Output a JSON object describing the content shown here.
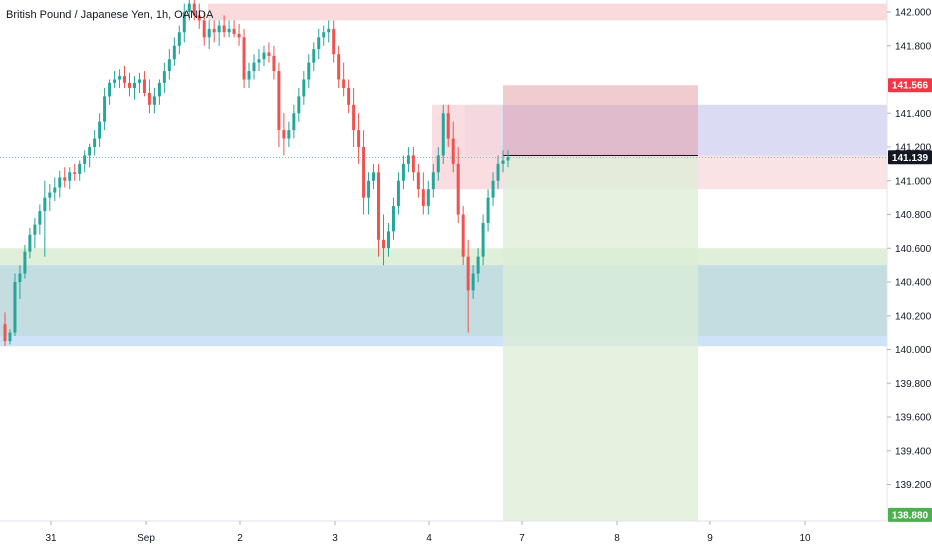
{
  "header": {
    "title": "British Pound / Japanese Yen, 1h, OANDA"
  },
  "price_tags": {
    "stop_loss": {
      "label": "141.566",
      "color": "#f23645"
    },
    "current": {
      "label": "141.139",
      "color": "#131722"
    },
    "target": {
      "label": "138.880",
      "color": "#4caf50"
    }
  },
  "colors": {
    "up": "#26a69a",
    "down": "#ef5350",
    "resistance_zone": "#f8d7da",
    "support_zone_green": "#dcedd5",
    "support_zone_blue": "#bcd9de",
    "supply_zone": "#d7d8f2",
    "risk_zone": "#e3a0aa",
    "reward_zone": "#dcedd5"
  },
  "chart_data": {
    "type": "candlestick",
    "symbol": "British Pound / Japanese Yen",
    "timeframe": "1h",
    "source": "OANDA",
    "ylim": [
      138.9,
      142.05
    ],
    "y_ticks": [
      "142.000",
      "141.800",
      "141.400",
      "141.200",
      "141.000",
      "140.800",
      "140.600",
      "140.400",
      "140.200",
      "140.000",
      "139.800",
      "139.600",
      "139.400",
      "139.200"
    ],
    "x_ticks": [
      "31",
      "Sep",
      "2",
      "3",
      "4",
      "7",
      "8",
      "9",
      "10"
    ],
    "last_price": 141.139,
    "zones": [
      {
        "name": "resistance",
        "from": 141.95,
        "to": 142.05
      },
      {
        "name": "support-green",
        "from": 140.5,
        "to": 140.6
      },
      {
        "name": "support-blue",
        "from": 140.02,
        "to": 140.5
      },
      {
        "name": "supply",
        "from": 141.15,
        "to": 141.45
      }
    ],
    "position": {
      "type": "short",
      "entry": 141.15,
      "stop": 141.566,
      "target": 138.88
    },
    "candles": [
      [
        140.15,
        140.22,
        140.02,
        140.05
      ],
      [
        140.05,
        140.12,
        140.03,
        140.1
      ],
      [
        140.1,
        140.45,
        140.08,
        140.4
      ],
      [
        140.4,
        140.5,
        140.3,
        140.45
      ],
      [
        140.45,
        140.62,
        140.42,
        140.58
      ],
      [
        140.58,
        140.72,
        140.54,
        140.68
      ],
      [
        140.68,
        140.78,
        140.6,
        140.74
      ],
      [
        140.74,
        140.86,
        140.68,
        140.82
      ],
      [
        140.82,
        141.0,
        140.55,
        140.9
      ],
      [
        140.9,
        140.98,
        140.82,
        140.93
      ],
      [
        140.93,
        141.02,
        140.88,
        140.96
      ],
      [
        140.96,
        141.06,
        140.9,
        141.02
      ],
      [
        141.02,
        141.08,
        140.96,
        141.0
      ],
      [
        141.0,
        141.08,
        140.95,
        141.05
      ],
      [
        141.05,
        141.1,
        141.0,
        141.04
      ],
      [
        141.04,
        141.12,
        141.0,
        141.1
      ],
      [
        141.1,
        141.18,
        141.05,
        141.15
      ],
      [
        141.15,
        141.22,
        141.08,
        141.2
      ],
      [
        141.2,
        141.3,
        141.15,
        141.25
      ],
      [
        141.25,
        141.4,
        141.2,
        141.35
      ],
      [
        141.35,
        141.55,
        141.3,
        141.5
      ],
      [
        141.5,
        141.6,
        141.45,
        141.58
      ],
      [
        141.58,
        141.65,
        141.55,
        141.6
      ],
      [
        141.6,
        141.66,
        141.55,
        141.62
      ],
      [
        141.62,
        141.68,
        141.55,
        141.58
      ],
      [
        141.58,
        141.64,
        141.5,
        141.55
      ],
      [
        141.55,
        141.62,
        141.48,
        141.58
      ],
      [
        141.58,
        141.64,
        141.52,
        141.6
      ],
      [
        141.6,
        141.65,
        141.5,
        141.52
      ],
      [
        141.52,
        141.6,
        141.4,
        141.45
      ],
      [
        141.45,
        141.55,
        141.4,
        141.5
      ],
      [
        141.5,
        141.6,
        141.45,
        141.58
      ],
      [
        141.58,
        141.7,
        141.52,
        141.65
      ],
      [
        141.65,
        141.78,
        141.6,
        141.72
      ],
      [
        141.72,
        141.85,
        141.68,
        141.8
      ],
      [
        141.8,
        141.92,
        141.75,
        141.88
      ],
      [
        141.88,
        142.05,
        141.82,
        142.0
      ],
      [
        142.0,
        142.1,
        141.95,
        142.05
      ],
      [
        142.05,
        142.1,
        141.95,
        141.98
      ],
      [
        141.98,
        142.05,
        141.9,
        141.95
      ],
      [
        141.95,
        142.0,
        141.8,
        141.85
      ],
      [
        141.85,
        141.95,
        141.78,
        141.9
      ],
      [
        141.9,
        141.95,
        141.82,
        141.88
      ],
      [
        141.88,
        141.95,
        141.8,
        141.92
      ],
      [
        141.92,
        141.98,
        141.85,
        141.88
      ],
      [
        141.88,
        141.95,
        141.85,
        141.9
      ],
      [
        141.9,
        141.95,
        141.85,
        141.87
      ],
      [
        141.87,
        141.93,
        141.8,
        141.85
      ],
      [
        141.85,
        141.9,
        141.55,
        141.6
      ],
      [
        141.6,
        141.7,
        141.55,
        141.65
      ],
      [
        141.65,
        141.75,
        141.6,
        141.7
      ],
      [
        141.7,
        141.78,
        141.65,
        141.72
      ],
      [
        141.72,
        141.8,
        141.68,
        141.76
      ],
      [
        141.76,
        141.82,
        141.7,
        141.74
      ],
      [
        141.74,
        141.8,
        141.6,
        141.65
      ],
      [
        141.65,
        141.7,
        141.2,
        141.3
      ],
      [
        141.3,
        141.4,
        141.15,
        141.25
      ],
      [
        141.25,
        141.35,
        141.2,
        141.3
      ],
      [
        141.3,
        141.45,
        141.25,
        141.4
      ],
      [
        141.4,
        141.55,
        141.35,
        141.5
      ],
      [
        141.5,
        141.65,
        141.45,
        141.6
      ],
      [
        141.6,
        141.75,
        141.55,
        141.7
      ],
      [
        141.7,
        141.82,
        141.65,
        141.78
      ],
      [
        141.78,
        141.9,
        141.72,
        141.85
      ],
      [
        141.85,
        141.92,
        141.8,
        141.88
      ],
      [
        141.88,
        141.95,
        141.82,
        141.9
      ],
      [
        141.9,
        141.95,
        141.7,
        141.75
      ],
      [
        141.75,
        141.8,
        141.55,
        141.6
      ],
      [
        141.6,
        141.7,
        141.5,
        141.55
      ],
      [
        141.55,
        141.6,
        141.4,
        141.45
      ],
      [
        141.45,
        141.55,
        141.2,
        141.3
      ],
      [
        141.3,
        141.4,
        141.1,
        141.2
      ],
      [
        141.2,
        141.3,
        140.8,
        140.9
      ],
      [
        140.9,
        141.05,
        140.8,
        141.0
      ],
      [
        141.0,
        141.1,
        140.95,
        141.05
      ],
      [
        141.05,
        141.1,
        140.55,
        140.65
      ],
      [
        140.65,
        140.8,
        140.5,
        140.6
      ],
      [
        140.6,
        140.75,
        140.55,
        140.7
      ],
      [
        140.7,
        140.9,
        140.65,
        140.85
      ],
      [
        140.85,
        141.05,
        140.8,
        141.0
      ],
      [
        141.0,
        141.15,
        140.95,
        141.1
      ],
      [
        141.1,
        141.2,
        141.05,
        141.15
      ],
      [
        141.15,
        141.2,
        141.0,
        141.05
      ],
      [
        141.05,
        141.1,
        140.9,
        140.95
      ],
      [
        140.95,
        141.05,
        140.8,
        140.85
      ],
      [
        140.85,
        141.0,
        140.8,
        140.95
      ],
      [
        140.95,
        141.1,
        140.9,
        141.05
      ],
      [
        141.05,
        141.2,
        141.0,
        141.15
      ],
      [
        141.15,
        141.45,
        141.1,
        141.4
      ],
      [
        141.4,
        141.45,
        141.2,
        141.25
      ],
      [
        141.25,
        141.35,
        141.05,
        141.1
      ],
      [
        141.1,
        141.2,
        140.75,
        140.8
      ],
      [
        140.8,
        140.85,
        140.5,
        140.55
      ],
      [
        140.55,
        140.65,
        140.1,
        140.35
      ],
      [
        140.35,
        140.5,
        140.3,
        140.45
      ],
      [
        140.45,
        140.6,
        140.4,
        140.55
      ],
      [
        140.55,
        140.8,
        140.5,
        140.75
      ],
      [
        140.75,
        140.95,
        140.7,
        140.9
      ],
      [
        140.9,
        141.05,
        140.85,
        141.0
      ],
      [
        141.0,
        141.15,
        140.95,
        141.1
      ],
      [
        141.1,
        141.18,
        141.05,
        141.12
      ],
      [
        141.12,
        141.18,
        141.08,
        141.14
      ]
    ]
  }
}
